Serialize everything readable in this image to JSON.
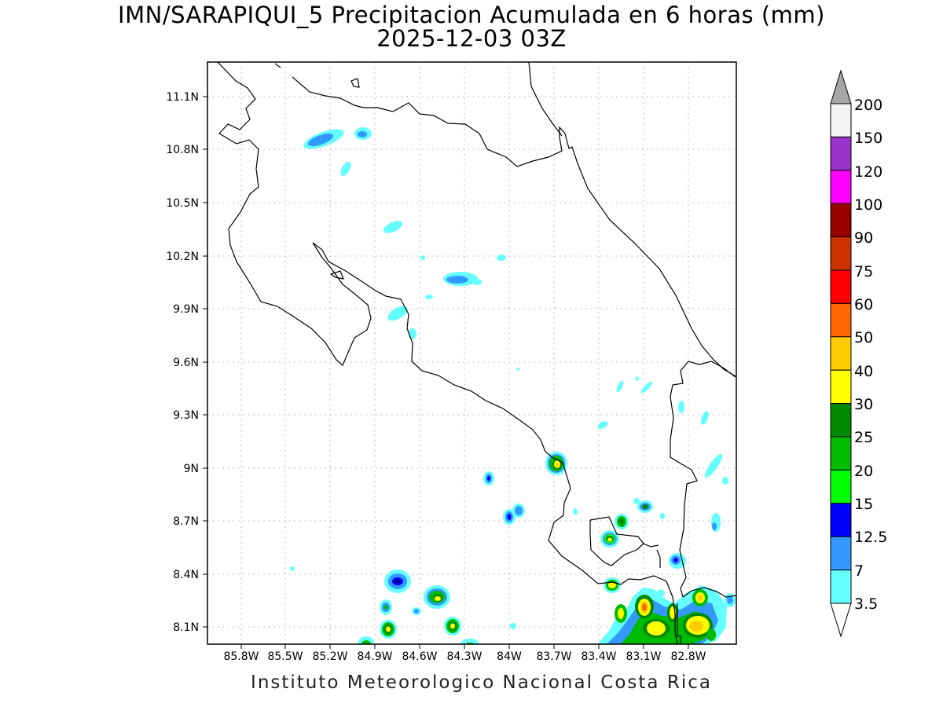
{
  "map": {
    "title_line1": "IMN/SARAPIQUI_5 Precipitacion Acumulada en 6 horas (mm)",
    "title_line2": "2025-12-03 03Z",
    "footer": "Instituto Meteorologico Nacional Costa Rica",
    "lat_labels": [
      "11.1N",
      "10.8N",
      "10.5N",
      "10.2N",
      "9.9N",
      "9.6N",
      "9.3N",
      "9N",
      "8.7N",
      "8.4N",
      "8.1N"
    ],
    "lon_labels": [
      "85.8W",
      "85.5W",
      "85.2W",
      "84.9W",
      "84.6W",
      "84.3W",
      "84W",
      "83.7W",
      "83.4W",
      "83.1W",
      "82.8W"
    ],
    "grid": "dotted"
  },
  "legend": {
    "labels": [
      "200",
      "150",
      "120",
      "100",
      "90",
      "75",
      "60",
      "50",
      "40",
      "30",
      "25",
      "20",
      "15",
      "12.5",
      "7",
      "3.5"
    ],
    "colors": [
      "#f2f2f2",
      "#9933cc",
      "#ff00ff",
      "#990000",
      "#cc3300",
      "#ff0000",
      "#ff6600",
      "#ffcc00",
      "#ffff00",
      "#008800",
      "#00bb00",
      "#00ff00",
      "#0000ff",
      "#3399ff",
      "#66ffff"
    ],
    "over_color": "#a6a6a6"
  }
}
